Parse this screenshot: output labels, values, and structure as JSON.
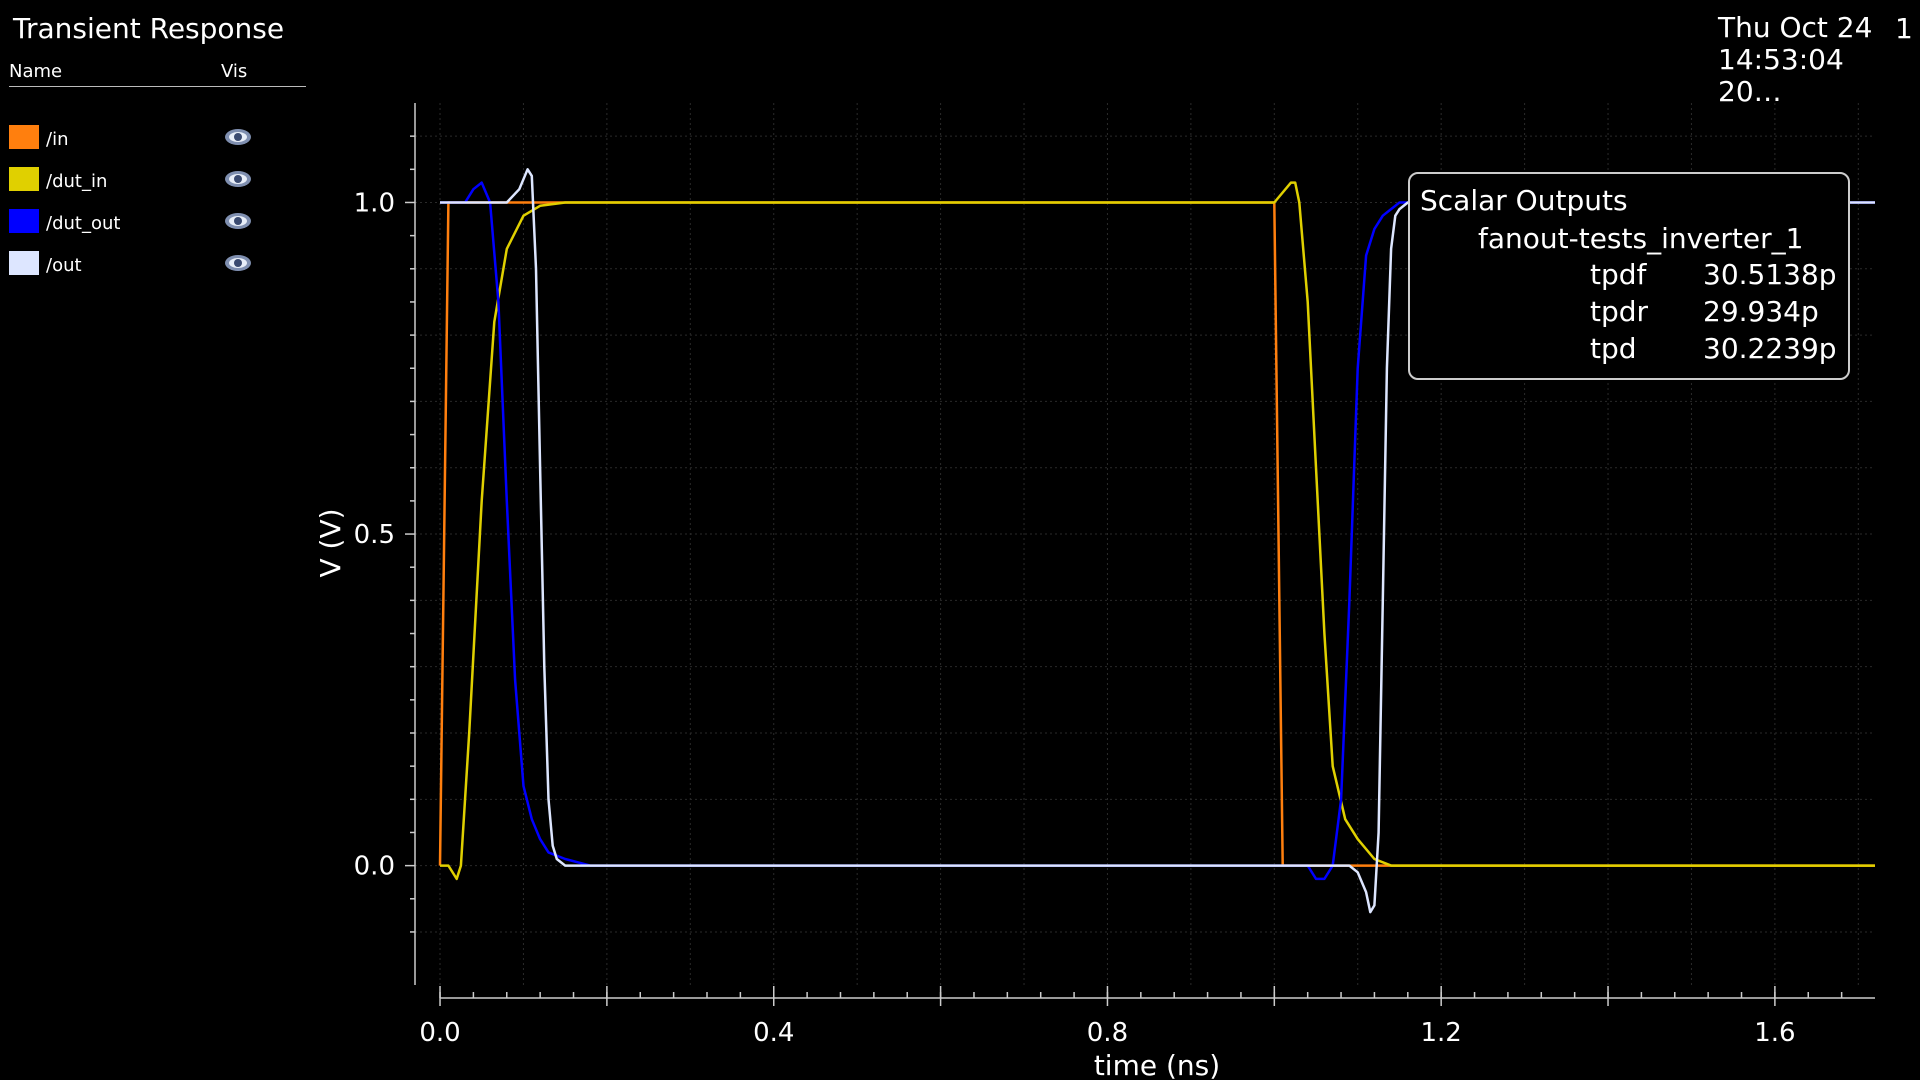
{
  "header": {
    "title": "Transient Response",
    "col_name": "Name",
    "col_vis": "Vis",
    "datetime": "Thu Oct 24\n14:53:04\n20…",
    "page": "1"
  },
  "legend": [
    {
      "label": "/in",
      "color": "#ff7f0e",
      "visible": true,
      "icon": "eye-icon"
    },
    {
      "label": "/dut_in",
      "color": "#e0d000",
      "visible": true,
      "icon": "eye-icon"
    },
    {
      "label": "/dut_out",
      "color": "#0000ff",
      "visible": true,
      "icon": "eye-icon"
    },
    {
      "label": "/out",
      "color": "#dde6ff",
      "visible": true,
      "icon": "eye-icon"
    }
  ],
  "scalar_outputs": {
    "title": "Scalar Outputs",
    "test": "fanout-tests_inverter_1",
    "rows": [
      {
        "name": "tpdf",
        "value": "30.5138p"
      },
      {
        "name": "tpdr",
        "value": "29.934p"
      },
      {
        "name": "tpd",
        "value": "30.2239p"
      }
    ]
  },
  "chart_data": {
    "type": "line",
    "title": "Transient Response",
    "xlabel": "time (ns)",
    "ylabel": "V (V)",
    "xlim": [
      -0.03,
      1.72
    ],
    "ylim": [
      -0.18,
      1.15
    ],
    "xticks": [
      0.0,
      0.4,
      0.8,
      1.2,
      1.6
    ],
    "xtick_labels": [
      "0.0",
      "0.4",
      "0.8",
      "1.2",
      "1.6"
    ],
    "yticks": [
      0.0,
      0.5,
      1.0
    ],
    "ytick_labels": [
      "0.0",
      "0.5",
      "1.0"
    ],
    "grid": true,
    "background": "#000000",
    "series": [
      {
        "name": "/in",
        "color": "#ff7f0e",
        "x": [
          0.0,
          0.01,
          1.0,
          1.01,
          1.72
        ],
        "y": [
          0.0,
          1.0,
          1.0,
          0.0,
          0.0
        ]
      },
      {
        "name": "/dut_in",
        "color": "#e0d000",
        "x": [
          0.0,
          0.01,
          0.02,
          0.025,
          0.035,
          0.05,
          0.065,
          0.08,
          0.1,
          0.12,
          0.15,
          0.18,
          1.0,
          1.02,
          1.025,
          1.03,
          1.04,
          1.05,
          1.06,
          1.07,
          1.085,
          1.1,
          1.12,
          1.14,
          1.16,
          1.72
        ],
        "y": [
          0.0,
          0.0,
          -0.02,
          0.0,
          0.2,
          0.55,
          0.82,
          0.93,
          0.98,
          0.995,
          1.0,
          1.0,
          1.0,
          1.03,
          1.03,
          1.0,
          0.85,
          0.6,
          0.35,
          0.15,
          0.07,
          0.04,
          0.01,
          0.0,
          0.0,
          0.0
        ]
      },
      {
        "name": "/dut_out",
        "color": "#0000ff",
        "x": [
          0.0,
          0.02,
          0.03,
          0.04,
          0.05,
          0.06,
          0.07,
          0.08,
          0.09,
          0.1,
          0.11,
          0.12,
          0.13,
          0.15,
          0.18,
          1.0,
          1.04,
          1.05,
          1.06,
          1.07,
          1.08,
          1.09,
          1.1,
          1.11,
          1.12,
          1.13,
          1.14,
          1.15,
          1.17,
          1.72
        ],
        "y": [
          1.0,
          1.0,
          1.0,
          1.02,
          1.03,
          1.0,
          0.85,
          0.55,
          0.28,
          0.12,
          0.07,
          0.04,
          0.02,
          0.01,
          0.0,
          0.0,
          0.0,
          -0.02,
          -0.02,
          0.0,
          0.1,
          0.4,
          0.75,
          0.92,
          0.96,
          0.98,
          0.99,
          1.0,
          1.0,
          1.0
        ]
      },
      {
        "name": "/out",
        "color": "#dde6ff",
        "x": [
          0.0,
          0.08,
          0.095,
          0.105,
          0.11,
          0.115,
          0.12,
          0.125,
          0.13,
          0.135,
          0.14,
          0.15,
          0.16,
          0.2,
          1.0,
          1.09,
          1.1,
          1.11,
          1.115,
          1.12,
          1.125,
          1.13,
          1.135,
          1.14,
          1.145,
          1.15,
          1.16,
          1.72
        ],
        "y": [
          1.0,
          1.0,
          1.02,
          1.05,
          1.04,
          0.9,
          0.6,
          0.3,
          0.1,
          0.03,
          0.01,
          0.0,
          0.0,
          0.0,
          0.0,
          0.0,
          -0.01,
          -0.04,
          -0.07,
          -0.06,
          0.05,
          0.4,
          0.75,
          0.93,
          0.98,
          0.99,
          1.0,
          1.0
        ]
      }
    ]
  }
}
